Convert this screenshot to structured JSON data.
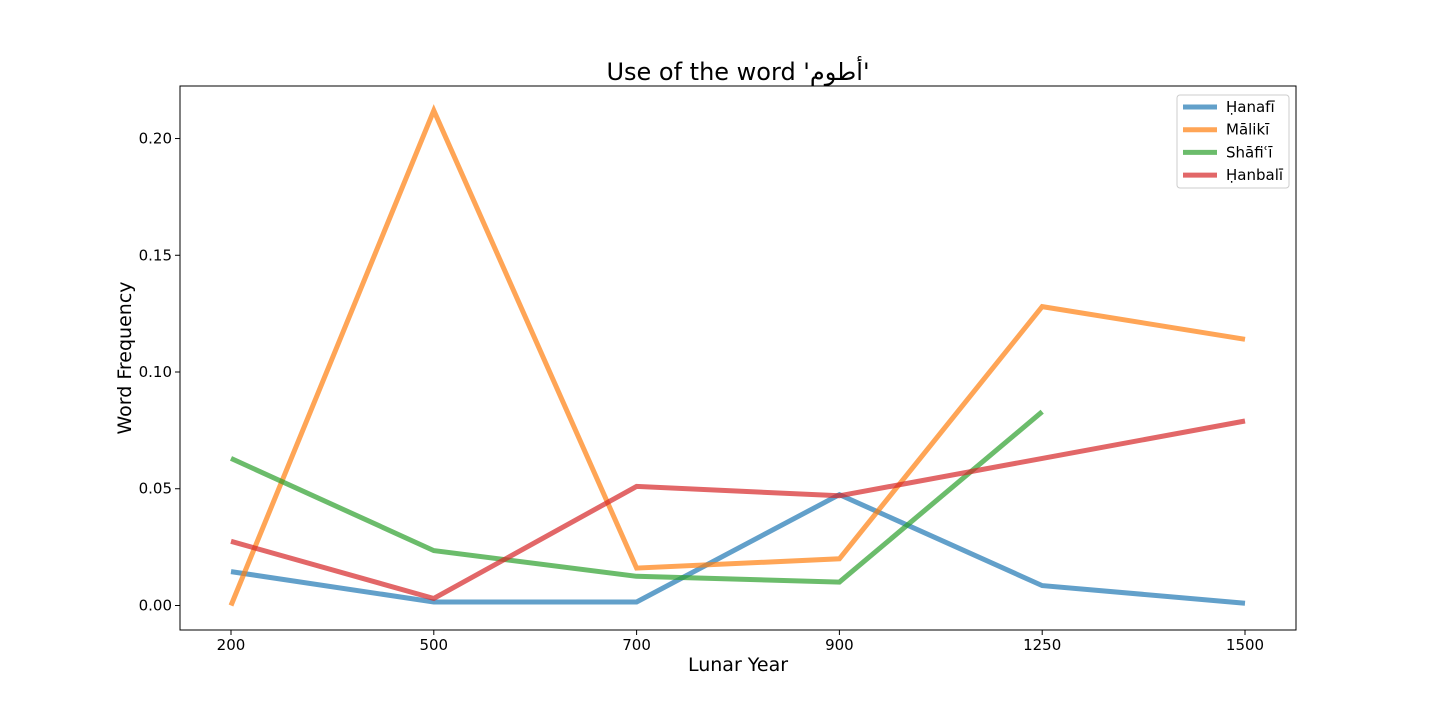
{
  "chart_data": {
    "type": "line",
    "title": "Use of the word 'أطوم'",
    "xlabel": "Lunar Year",
    "ylabel": "Word Frequency",
    "categories": [
      "200",
      "500",
      "700",
      "900",
      "1250",
      "1500"
    ],
    "x_scale": "categorical",
    "ylim": [
      -0.0105,
      0.2225
    ],
    "yticks": [
      0.0,
      0.05,
      0.1,
      0.15,
      0.2
    ],
    "ytick_labels": [
      "0.00",
      "0.05",
      "0.10",
      "0.15",
      "0.20"
    ],
    "grid": false,
    "legend_position": "top-right",
    "series": [
      {
        "name": "Ḥanafī",
        "color": "#1f77b4",
        "values": [
          0.0145,
          0.0015,
          0.0015,
          0.0475,
          0.0085,
          0.001
        ]
      },
      {
        "name": "Mālikī",
        "color": "#ff7f0e",
        "values": [
          0.0,
          0.212,
          0.016,
          0.02,
          0.128,
          0.114
        ]
      },
      {
        "name": "Shāfiʿī",
        "color": "#2ca02c",
        "values": [
          0.063,
          0.0235,
          0.0125,
          0.01,
          0.083,
          null
        ]
      },
      {
        "name": "Ḥanbalī",
        "color": "#d62728",
        "values": [
          0.0275,
          0.003,
          0.051,
          0.047,
          0.063,
          0.079
        ]
      }
    ]
  }
}
